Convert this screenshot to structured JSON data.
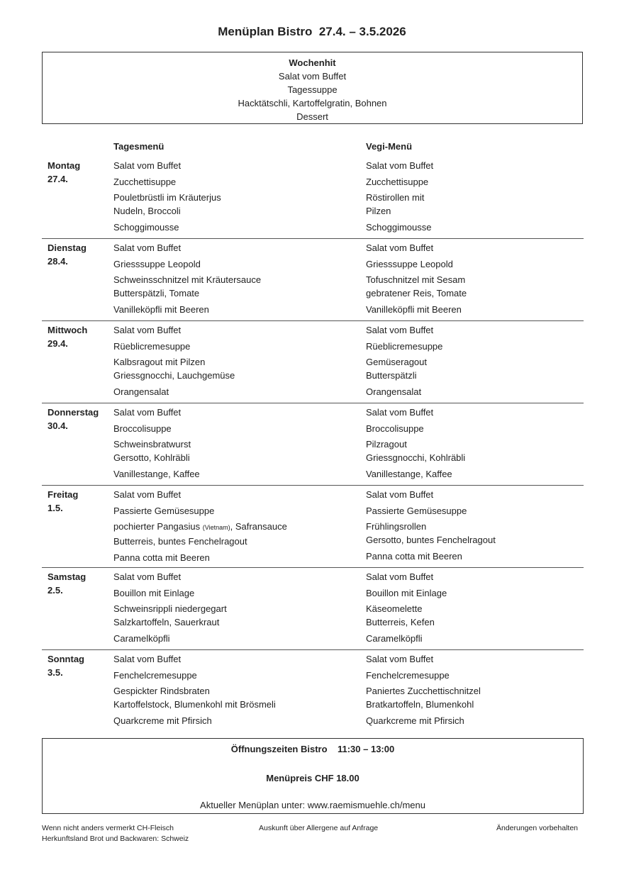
{
  "title": "Menüplan Bistro  27.4. – 3.5.2026",
  "wochenhit": {
    "heading": "Wochenhit",
    "lines": [
      "Salat vom Buffet",
      "Tagessuppe",
      "Hacktätschli, Kartoffelgratin, Bohnen",
      "Dessert"
    ]
  },
  "headers": {
    "tages": "Tagesmenü",
    "vegi": "Vegi-Menü"
  },
  "days": [
    {
      "name": "Montag",
      "date": "27.4.",
      "tages": {
        "salad": "Salat vom Buffet",
        "soup": "Zucchettisuppe",
        "main": [
          "Pouletbrüstli im Kräuterjus",
          "Nudeln, Broccoli"
        ],
        "dessert": "Schoggimousse"
      },
      "vegi": {
        "salad": "Salat vom Buffet",
        "soup": "Zucchettisuppe",
        "main": [
          "Röstirollen mit",
          "Pilzen"
        ],
        "dessert": "Schoggimousse"
      }
    },
    {
      "name": "Dienstag",
      "date": "28.4.",
      "tages": {
        "salad": "Salat vom Buffet",
        "soup": "Griesssuppe Leopold",
        "main": [
          "Schweinsschnitzel mit Kräutersauce",
          "Butterspätzli, Tomate"
        ],
        "dessert": "Vanilleköpfli mit Beeren"
      },
      "vegi": {
        "salad": "Salat vom Buffet",
        "soup": "Griesssuppe Leopold",
        "main": [
          "Tofuschnitzel mit Sesam",
          "gebratener Reis, Tomate"
        ],
        "dessert": "Vanilleköpfli mit Beeren"
      }
    },
    {
      "name": "Mittwoch",
      "date": "29.4.",
      "tages": {
        "salad": "Salat vom Buffet",
        "soup": "Rüeblicremesuppe",
        "main": [
          "Kalbsragout mit Pilzen",
          "Griessgnocchi, Lauchgemüse"
        ],
        "dessert": "Orangensalat"
      },
      "vegi": {
        "salad": "Salat vom Buffet",
        "soup": "Rüeblicremesuppe",
        "main": [
          "Gemüseragout",
          "Butterspätzli"
        ],
        "dessert": "Orangensalat"
      }
    },
    {
      "name": "Donnerstag",
      "date": "30.4.",
      "tages": {
        "salad": "Salat vom Buffet",
        "soup": "Broccolisuppe",
        "main": [
          "Schweinsbratwurst",
          "Gersotto, Kohlräbli"
        ],
        "dessert": "Vanillestange, Kaffee"
      },
      "vegi": {
        "salad": "Salat vom Buffet",
        "soup": "Broccolisuppe",
        "main": [
          "Pilzragout",
          "Griessgnocchi, Kohlräbli"
        ],
        "dessert": "Vanillestange, Kaffee"
      }
    },
    {
      "name": "Freitag",
      "date": "1.5.",
      "tages": {
        "salad": "Salat vom Buffet",
        "soup": "Passierte Gemüsesuppe",
        "main": [
          [
            {
              "t": "pochierter Pangasius "
            },
            {
              "t": "(Vietnam)",
              "small": true
            },
            {
              "t": ", Safransauce"
            }
          ],
          "Butterreis, buntes Fenchelragout"
        ],
        "dessert": "Panna cotta mit Beeren"
      },
      "vegi": {
        "salad": "Salat vom Buffet",
        "soup": "Passierte Gemüsesuppe",
        "main": [
          "Frühlingsrollen",
          "Gersotto, buntes Fenchelragout"
        ],
        "dessert": "Panna cotta mit Beeren"
      }
    },
    {
      "name": "Samstag",
      "date": "2.5.",
      "tages": {
        "salad": "Salat vom Buffet",
        "soup": "Bouillon mit Einlage",
        "main": [
          "Schweinsrippli niedergegart",
          "Salzkartoffeln, Sauerkraut"
        ],
        "dessert": "Caramelköpfli"
      },
      "vegi": {
        "salad": "Salat vom Buffet",
        "soup": "Bouillon mit Einlage",
        "main": [
          "Käseomelette",
          "Butterreis, Kefen"
        ],
        "dessert": "Caramelköpfli"
      }
    },
    {
      "name": "Sonntag",
      "date": "3.5.",
      "tages": {
        "salad": "Salat vom Buffet",
        "soup": "Fenchelcremesuppe",
        "main": [
          "Gespickter Rindsbraten",
          "Kartoffelstock, Blumenkohl mit Brösmeli"
        ],
        "dessert": "Quarkcreme mit Pfirsich"
      },
      "vegi": {
        "salad": "Salat vom Buffet",
        "soup": "Fenchelcremesuppe",
        "main": [
          "Paniertes Zucchettischnitzel",
          "Bratkartoffeln, Blumenkohl"
        ],
        "dessert": "Quarkcreme mit Pfirsich"
      }
    }
  ],
  "footer": {
    "hours": "Öffnungszeiten Bistro    11:30 – 13:00",
    "price": "Menüpreis CHF 18.00",
    "link": "Aktueller Menüplan unter: www.raemismuehle.ch/menu"
  },
  "notes": {
    "left": [
      "Wenn nicht anders vermerkt CH-Fleisch",
      "Herkunftsland Brot und Backwaren: Schweiz"
    ],
    "center": "Auskunft über Allergene auf Anfrage",
    "right": "Änderungen vorbehalten"
  }
}
